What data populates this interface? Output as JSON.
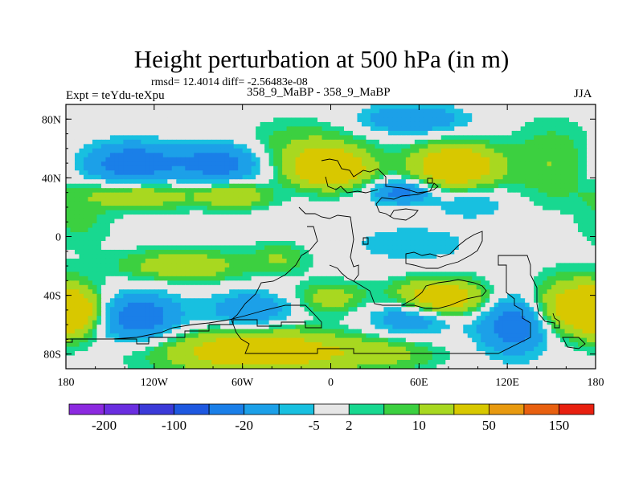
{
  "chart_data": {
    "type": "heatmap",
    "title": "Height perturbation at 500 hPa (in m)",
    "stats": "rmsd= 12.4014 diff= -2.56483e-08",
    "experiment": "Expt = teYdu-teXpu",
    "case": "358_9_MaBP - 358_9_MaBP",
    "season": "JJA",
    "xlim": [
      -180,
      180
    ],
    "ylim": [
      -90,
      90
    ],
    "x_ticks": [
      {
        "value": -180,
        "label": "180"
      },
      {
        "value": -120,
        "label": "120W"
      },
      {
        "value": -60,
        "label": "60W"
      },
      {
        "value": 0,
        "label": "0"
      },
      {
        "value": 60,
        "label": "60E"
      },
      {
        "value": 120,
        "label": "120E"
      },
      {
        "value": 180,
        "label": "180"
      }
    ],
    "y_ticks": [
      {
        "value": 80,
        "label": "80N"
      },
      {
        "value": 40,
        "label": "40N"
      },
      {
        "value": 0,
        "label": "0"
      },
      {
        "value": -40,
        "label": "40S"
      },
      {
        "value": -80,
        "label": "80S"
      }
    ],
    "colorbar": {
      "colors": [
        "#8c2ae0",
        "#6a2ee0",
        "#3b3ad8",
        "#1e58e0",
        "#1a7fe8",
        "#1ca0e8",
        "#18c0e0",
        "#e6e6e6",
        "#18d890",
        "#3cd040",
        "#a8d820",
        "#d8c800",
        "#e89a10",
        "#e86010",
        "#e82010"
      ],
      "labels": [
        {
          "value": -200,
          "label": "-200"
        },
        {
          "value": -100,
          "label": "-100"
        },
        {
          "value": -20,
          "label": "-20"
        },
        {
          "value": -5,
          "label": "-5"
        },
        {
          "value": 2,
          "label": "2"
        },
        {
          "value": 10,
          "label": "10"
        },
        {
          "value": 50,
          "label": "50"
        },
        {
          "value": 150,
          "label": "150"
        }
      ]
    },
    "field_blobs": [
      {
        "lon": -135,
        "lat": 50,
        "rlon": 32,
        "rlat": 14,
        "amp": -30
      },
      {
        "lon": -75,
        "lat": 50,
        "rlon": 28,
        "rlat": 13,
        "amp": -28
      },
      {
        "lon": -15,
        "lat": 58,
        "rlon": 40,
        "rlat": 18,
        "amp": 12
      },
      {
        "lon": 0,
        "lat": 46,
        "rlon": 24,
        "rlat": 12,
        "amp": 40
      },
      {
        "lon": 55,
        "lat": 80,
        "rlon": 35,
        "rlat": 10,
        "amp": -20
      },
      {
        "lon": 85,
        "lat": 48,
        "rlon": 28,
        "rlat": 14,
        "amp": 40
      },
      {
        "lon": 150,
        "lat": 50,
        "rlon": 25,
        "rlat": 25,
        "amp": 10
      },
      {
        "lon": -130,
        "lat": 28,
        "rlon": 40,
        "rlat": 9,
        "amp": 18
      },
      {
        "lon": -65,
        "lat": 28,
        "rlon": 22,
        "rlat": 8,
        "amp": 20
      },
      {
        "lon": 48,
        "lat": 30,
        "rlon": 20,
        "rlat": 8,
        "amp": -25
      },
      {
        "lon": 95,
        "lat": 22,
        "rlon": 25,
        "rlat": 10,
        "amp": -10
      },
      {
        "lon": -170,
        "lat": 10,
        "rlon": 20,
        "rlat": 18,
        "amp": 6
      },
      {
        "lon": -100,
        "lat": -20,
        "rlon": 40,
        "rlat": 10,
        "amp": 18
      },
      {
        "lon": -35,
        "lat": -15,
        "rlon": 18,
        "rlat": 10,
        "amp": 10
      },
      {
        "lon": 55,
        "lat": -5,
        "rlon": 40,
        "rlat": 12,
        "amp": -10
      },
      {
        "lon": -175,
        "lat": -52,
        "rlon": 18,
        "rlat": 15,
        "amp": 30
      },
      {
        "lon": -130,
        "lat": -55,
        "rlon": 28,
        "rlat": 16,
        "amp": -30
      },
      {
        "lon": -55,
        "lat": -50,
        "rlon": 28,
        "rlat": 12,
        "amp": -20
      },
      {
        "lon": 0,
        "lat": -42,
        "rlon": 22,
        "rlat": 10,
        "amp": 15
      },
      {
        "lon": -50,
        "lat": -78,
        "rlon": 60,
        "rlat": 14,
        "amp": 35
      },
      {
        "lon": 55,
        "lat": -55,
        "rlon": 28,
        "rlat": 12,
        "amp": -20
      },
      {
        "lon": 75,
        "lat": -42,
        "rlon": 30,
        "rlat": 12,
        "amp": 35
      },
      {
        "lon": 35,
        "lat": -80,
        "rlon": 35,
        "rlat": 10,
        "amp": 12
      },
      {
        "lon": 125,
        "lat": -60,
        "rlon": 24,
        "rlat": 20,
        "amp": -30
      },
      {
        "lon": 165,
        "lat": -48,
        "rlon": 28,
        "rlat": 18,
        "amp": 30
      }
    ]
  }
}
